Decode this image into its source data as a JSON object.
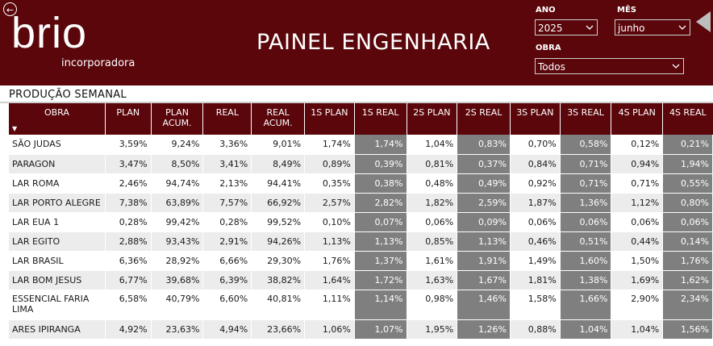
{
  "header": {
    "logo": "brio",
    "logo_sub": "incorporadora",
    "title": "PAINEL ENGENHARIA",
    "filters": {
      "ano_label": "ANO",
      "ano_value": "2025",
      "mes_label": "MÊS",
      "mes_value": "junho",
      "obra_label": "OBRA",
      "obra_value": "Todos"
    }
  },
  "section_title": "PRODUÇÃO SEMANAL",
  "table": {
    "columns": [
      "OBRA",
      "PLAN",
      "PLAN ACUM.",
      "REAL",
      "REAL ACUM.",
      "1S PLAN",
      "1S REAL",
      "2S PLAN",
      "2S REAL",
      "3S PLAN",
      "3S REAL",
      "4S PLAN",
      "4S REAL"
    ],
    "rows": [
      [
        "SÃO JUDAS",
        "3,59%",
        "9,24%",
        "3,36%",
        "9,01%",
        "1,74%",
        "1,74%",
        "1,04%",
        "0,83%",
        "0,70%",
        "0,58%",
        "0,12%",
        "0,21%"
      ],
      [
        "PARAGON",
        "3,47%",
        "8,50%",
        "3,41%",
        "8,49%",
        "0,89%",
        "0,39%",
        "0,81%",
        "0,37%",
        "0,84%",
        "0,71%",
        "0,94%",
        "1,94%"
      ],
      [
        "LAR ROMA",
        "2,46%",
        "94,74%",
        "2,13%",
        "94,41%",
        "0,35%",
        "0,38%",
        "0,48%",
        "0,49%",
        "0,92%",
        "0,71%",
        "0,71%",
        "0,55%"
      ],
      [
        "LAR PORTO ALEGRE",
        "7,38%",
        "63,89%",
        "7,57%",
        "66,92%",
        "2,57%",
        "2,82%",
        "1,82%",
        "2,59%",
        "1,87%",
        "1,36%",
        "1,12%",
        "0,80%"
      ],
      [
        "LAR EUA 1",
        "0,28%",
        "99,42%",
        "0,28%",
        "99,52%",
        "0,10%",
        "0,07%",
        "0,06%",
        "0,09%",
        "0,06%",
        "0,06%",
        "0,06%",
        "0,06%"
      ],
      [
        "LAR EGITO",
        "2,88%",
        "93,43%",
        "2,91%",
        "94,26%",
        "1,13%",
        "1,13%",
        "0,85%",
        "1,13%",
        "0,46%",
        "0,51%",
        "0,44%",
        "0,14%"
      ],
      [
        "LAR BRASIL",
        "6,36%",
        "28,92%",
        "6,66%",
        "29,30%",
        "1,76%",
        "1,37%",
        "1,61%",
        "1,91%",
        "1,49%",
        "1,60%",
        "1,50%",
        "1,76%"
      ],
      [
        "LAR BOM JESUS",
        "6,77%",
        "39,68%",
        "6,39%",
        "38,82%",
        "1,64%",
        "1,72%",
        "1,63%",
        "1,67%",
        "1,81%",
        "1,38%",
        "1,69%",
        "1,62%"
      ],
      [
        "ESSENCIAL FARIA LIMA",
        "6,58%",
        "40,79%",
        "6,60%",
        "40,81%",
        "1,11%",
        "1,14%",
        "0,98%",
        "1,46%",
        "1,58%",
        "1,66%",
        "2,90%",
        "2,34%"
      ],
      [
        "ARES IPIRANGA",
        "4,92%",
        "23,63%",
        "4,94%",
        "23,66%",
        "1,06%",
        "1,07%",
        "1,95%",
        "1,26%",
        "0,88%",
        "1,04%",
        "1,04%",
        "1,56%"
      ]
    ]
  },
  "colors": {
    "header_bg": "#5a060b",
    "highlight_cell": "#7f7f7f",
    "row_alt": "#ececec"
  },
  "icons": {
    "back": "back-circle-icon",
    "nav_arrow": "nav-left-arrow-icon",
    "dropdown": "chevron-down-icon",
    "sort": "sort-down-icon"
  }
}
